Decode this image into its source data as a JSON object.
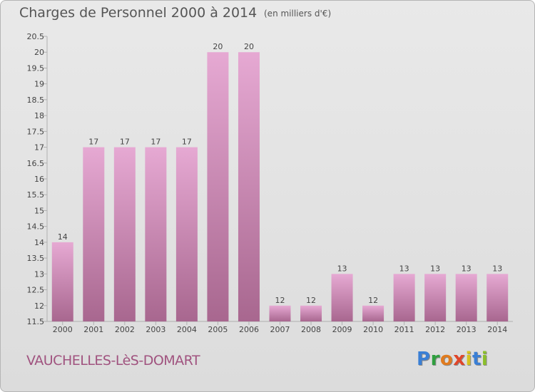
{
  "title": "Charges de Personnel 2000 à 2014",
  "subtitle": "(en milliers d'€)",
  "city": "VAUCHELLES-LèS-DOMART",
  "logo": {
    "letters": [
      "P",
      "r",
      "o",
      "x",
      "i",
      "t",
      "i"
    ],
    "colors": [
      "#3a7fd5",
      "#2f9f3f",
      "#e07b1f",
      "#e0462a",
      "#d6c21e",
      "#3a7fd5",
      "#8bbf2a"
    ]
  },
  "colors": {
    "bar_top": "#e6a9d3",
    "bar_bottom": "#a8678f",
    "axis": "#b0b0b0",
    "text": "#555555",
    "brand": "#a0537f"
  },
  "chart_data": {
    "type": "bar",
    "title": "Charges de Personnel 2000 à 2014",
    "subtitle": "(en milliers d'€)",
    "xlabel": "",
    "ylabel": "",
    "ylim": [
      11.5,
      20.5
    ],
    "yticks": [
      11.5,
      12,
      12.5,
      13,
      13.5,
      14,
      14.5,
      15,
      15.5,
      16,
      16.5,
      17,
      17.5,
      18,
      18.5,
      19,
      19.5,
      20,
      20.5
    ],
    "grid": false,
    "categories": [
      "2000",
      "2001",
      "2002",
      "2003",
      "2004",
      "2005",
      "2006",
      "2007",
      "2008",
      "2009",
      "2010",
      "2011",
      "2012",
      "2013",
      "2014"
    ],
    "values": [
      14,
      17,
      17,
      17,
      17,
      20,
      20,
      12,
      12,
      13,
      12,
      13,
      13,
      13,
      13
    ]
  }
}
